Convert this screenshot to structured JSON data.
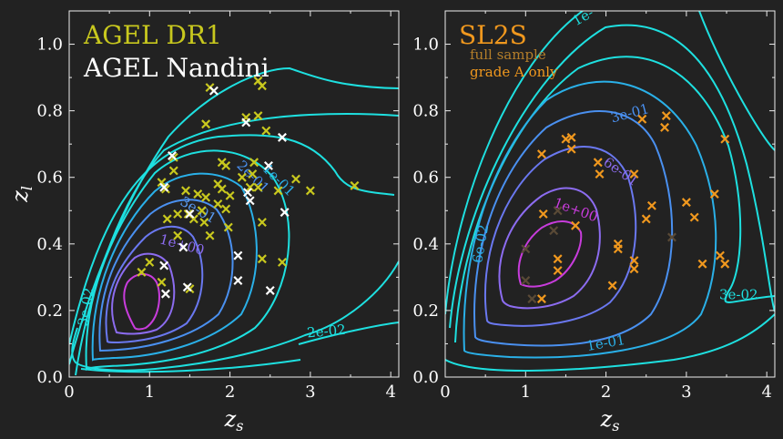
{
  "chart_data": [
    {
      "type": "scatter",
      "xlabel": "z",
      "xlabel_sub": "s",
      "ylabel": "z",
      "ylabel_sub": "l",
      "xlim": [
        0,
        4.1
      ],
      "ylim": [
        0,
        1.1
      ],
      "xticks": [
        "0",
        "1",
        "2",
        "3",
        "4"
      ],
      "yticks": [
        "0.0",
        "0.2",
        "0.4",
        "0.6",
        "0.8",
        "1.0"
      ],
      "legend": [
        {
          "text": "AGEL DR1",
          "color": "#c8c81e"
        },
        {
          "text": "AGEL Nandini",
          "color": "#ffffff"
        }
      ],
      "contour_labels": [
        {
          "text": "3e-02",
          "x": 0.22,
          "y": 0.21,
          "rot": -80,
          "color": "#1ee0e0"
        },
        {
          "text": "2e-02",
          "x": 3.2,
          "y": 0.135,
          "rot": -5,
          "color": "#1ee0e0"
        },
        {
          "text": "1e-01",
          "x": 2.6,
          "y": 0.59,
          "rot": 45,
          "color": "#2ab0e8"
        },
        {
          "text": "2e-01",
          "x": 2.28,
          "y": 0.6,
          "rot": 45,
          "color": "#4a90f0"
        },
        {
          "text": "3e-01",
          "x": 1.6,
          "y": 0.5,
          "rot": 30,
          "color": "#5a9af0"
        },
        {
          "text": "1e+00",
          "x": 1.4,
          "y": 0.395,
          "rot": 15,
          "color": "#8c6cf0"
        }
      ],
      "series": [
        {
          "name": "AGEL DR1",
          "color": "#c8c81e",
          "points": [
            [
              1.75,
              0.87
            ],
            [
              2.35,
              0.89
            ],
            [
              2.4,
              0.875
            ],
            [
              1.7,
              0.76
            ],
            [
              2.2,
              0.78
            ],
            [
              2.35,
              0.785
            ],
            [
              2.45,
              0.74
            ],
            [
              1.3,
              0.66
            ],
            [
              1.9,
              0.645
            ],
            [
              1.95,
              0.635
            ],
            [
              2.3,
              0.645
            ],
            [
              1.3,
              0.62
            ],
            [
              2.15,
              0.6
            ],
            [
              2.28,
              0.61
            ],
            [
              2.35,
              0.57
            ],
            [
              2.6,
              0.56
            ],
            [
              2.82,
              0.595
            ],
            [
              3.0,
              0.56
            ],
            [
              3.55,
              0.575
            ],
            [
              1.15,
              0.585
            ],
            [
              1.2,
              0.565
            ],
            [
              1.45,
              0.56
            ],
            [
              1.6,
              0.55
            ],
            [
              1.7,
              0.54
            ],
            [
              1.85,
              0.58
            ],
            [
              1.9,
              0.565
            ],
            [
              2.0,
              0.545
            ],
            [
              2.25,
              0.57
            ],
            [
              1.85,
              0.52
            ],
            [
              1.95,
              0.505
            ],
            [
              1.65,
              0.5
            ],
            [
              1.48,
              0.49
            ],
            [
              1.35,
              0.49
            ],
            [
              1.55,
              0.475
            ],
            [
              1.22,
              0.475
            ],
            [
              1.68,
              0.465
            ],
            [
              2.4,
              0.465
            ],
            [
              1.98,
              0.45
            ],
            [
              1.75,
              0.425
            ],
            [
              1.35,
              0.425
            ],
            [
              2.4,
              0.355
            ],
            [
              2.65,
              0.345
            ],
            [
              1.0,
              0.345
            ],
            [
              0.9,
              0.315
            ],
            [
              1.15,
              0.285
            ],
            [
              1.5,
              0.265
            ]
          ]
        },
        {
          "name": "AGEL Nandini",
          "color": "#ffffff",
          "points": [
            [
              1.8,
              0.86
            ],
            [
              2.2,
              0.765
            ],
            [
              2.65,
              0.72
            ],
            [
              2.48,
              0.635
            ],
            [
              2.22,
              0.555
            ],
            [
              2.25,
              0.53
            ],
            [
              2.68,
              0.495
            ],
            [
              1.5,
              0.49
            ],
            [
              1.42,
              0.39
            ],
            [
              2.1,
              0.365
            ],
            [
              1.18,
              0.335
            ],
            [
              2.1,
              0.29
            ],
            [
              1.47,
              0.27
            ],
            [
              2.5,
              0.26
            ],
            [
              1.2,
              0.25
            ],
            [
              1.18,
              0.57
            ],
            [
              1.28,
              0.665
            ]
          ]
        }
      ]
    },
    {
      "type": "scatter",
      "xlabel": "z",
      "xlabel_sub": "s",
      "ylabel": "",
      "ylabel_sub": "",
      "xlim": [
        0,
        4.1
      ],
      "ylim": [
        0,
        1.1
      ],
      "xticks": [
        "0",
        "1",
        "2",
        "3",
        "4"
      ],
      "yticks": [
        "0.0",
        "0.2",
        "0.4",
        "0.6",
        "0.8",
        "1.0"
      ],
      "title": "SL2S",
      "title_color": "#f0981e",
      "legend": [
        {
          "text": "full sample",
          "color": "#b47e2a"
        },
        {
          "text": "grade A only",
          "color": "#f0981e"
        }
      ],
      "contour_labels": [
        {
          "text": "1e-",
          "x": 1.72,
          "y": 1.08,
          "rot": -30,
          "color": "#1ee0e0"
        },
        {
          "text": "3e-01",
          "x": 2.3,
          "y": 0.79,
          "rot": -15,
          "color": "#4a90f0"
        },
        {
          "text": "6e-01",
          "x": 2.18,
          "y": 0.615,
          "rot": 35,
          "color": "#8c6cf0"
        },
        {
          "text": "1e+00",
          "x": 1.62,
          "y": 0.5,
          "rot": 20,
          "color": "#c83cdc"
        },
        {
          "text": "6e-02",
          "x": 0.45,
          "y": 0.4,
          "rot": -80,
          "color": "#2ab0e8"
        },
        {
          "text": "1e-01",
          "x": 2.0,
          "y": 0.1,
          "rot": -10,
          "color": "#2ab0e8"
        },
        {
          "text": "3e-02",
          "x": 3.65,
          "y": 0.245,
          "rot": 0,
          "color": "#1ee0e0"
        }
      ],
      "series": [
        {
          "name": "full sample",
          "color": "#5a4a36",
          "points": [
            [
              1.0,
              0.385
            ],
            [
              1.35,
              0.44
            ],
            [
              1.4,
              0.5
            ],
            [
              1.0,
              0.29
            ],
            [
              1.08,
              0.235
            ],
            [
              2.82,
              0.42
            ]
          ]
        },
        {
          "name": "grade A only",
          "color": "#f0981e",
          "points": [
            [
              1.2,
              0.67
            ],
            [
              1.5,
              0.715
            ],
            [
              1.57,
              0.72
            ],
            [
              1.57,
              0.685
            ],
            [
              2.45,
              0.775
            ],
            [
              2.75,
              0.785
            ],
            [
              2.73,
              0.75
            ],
            [
              3.48,
              0.715
            ],
            [
              1.9,
              0.645
            ],
            [
              1.92,
              0.61
            ],
            [
              2.35,
              0.61
            ],
            [
              2.57,
              0.515
            ],
            [
              2.5,
              0.475
            ],
            [
              3.0,
              0.525
            ],
            [
              3.35,
              0.55
            ],
            [
              3.1,
              0.48
            ],
            [
              1.22,
              0.49
            ],
            [
              1.62,
              0.455
            ],
            [
              2.15,
              0.4
            ],
            [
              2.15,
              0.385
            ],
            [
              2.35,
              0.35
            ],
            [
              2.35,
              0.325
            ],
            [
              1.4,
              0.355
            ],
            [
              1.4,
              0.32
            ],
            [
              2.08,
              0.275
            ],
            [
              3.2,
              0.34
            ],
            [
              3.48,
              0.34
            ],
            [
              3.42,
              0.365
            ],
            [
              1.2,
              0.235
            ]
          ]
        }
      ]
    }
  ]
}
